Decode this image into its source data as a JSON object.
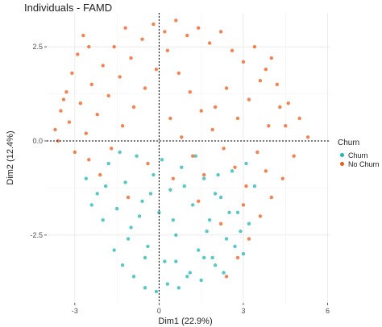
{
  "chart_data": {
    "type": "scatter",
    "title": "Individuals - FAMD",
    "xlabel": "Dim1 (22.9%)",
    "ylabel": "Dim2 (12.4%)",
    "xlim": [
      -4.0,
      6.1
    ],
    "ylim": [
      -4.3,
      3.4
    ],
    "x_ticks": [
      -3,
      0,
      3,
      6
    ],
    "x_tick_labels": [
      "-3",
      "0",
      "3",
      "6"
    ],
    "y_ticks": [
      -2.5,
      0.0,
      2.5
    ],
    "y_tick_labels": [
      "-2.5",
      "0.0",
      "2.5"
    ],
    "grid": true,
    "reference_lines": {
      "x": 0,
      "y": 0
    },
    "legend": {
      "title": "Churn",
      "position": "right",
      "entries": [
        {
          "label": "Churn",
          "color": "#1fb6b3"
        },
        {
          "label": "No Churn",
          "color": "#ef5a1a"
        }
      ]
    },
    "series": [
      {
        "name": "Churn",
        "color": "#1fb6b3",
        "points": [
          [
            -2.6,
            -1.0
          ],
          [
            -2.2,
            -1.4
          ],
          [
            -1.8,
            -0.6
          ],
          [
            -1.5,
            -1.8
          ],
          [
            -1.2,
            -1.1
          ],
          [
            -1.0,
            -2.3
          ],
          [
            -0.8,
            -0.4
          ],
          [
            -0.6,
            -1.6
          ],
          [
            -0.4,
            -2.8
          ],
          [
            -0.2,
            -0.9
          ],
          [
            0.0,
            -1.9
          ],
          [
            0.2,
            -3.2
          ],
          [
            0.4,
            -1.3
          ],
          [
            0.6,
            -2.5
          ],
          [
            0.8,
            -0.7
          ],
          [
            1.0,
            -3.6
          ],
          [
            1.2,
            -1.7
          ],
          [
            1.4,
            -2.9
          ],
          [
            1.6,
            -1.0
          ],
          [
            1.8,
            -2.1
          ],
          [
            2.0,
            -3.3
          ],
          [
            2.2,
            -1.5
          ],
          [
            2.4,
            -2.6
          ],
          [
            2.6,
            -0.8
          ],
          [
            2.8,
            -1.9
          ],
          [
            3.0,
            -3.0
          ],
          [
            3.2,
            -2.2
          ],
          [
            3.4,
            -1.2
          ],
          [
            -1.6,
            -2.9
          ],
          [
            -1.3,
            -3.3
          ],
          [
            -0.9,
            -3.6
          ],
          [
            -0.5,
            -3.9
          ],
          [
            -0.1,
            -4.0
          ],
          [
            0.3,
            -3.8
          ],
          [
            0.7,
            -3.9
          ],
          [
            1.1,
            -3.5
          ],
          [
            1.5,
            -3.7
          ],
          [
            1.9,
            -3.1
          ],
          [
            2.3,
            -3.5
          ],
          [
            2.7,
            -2.8
          ],
          [
            -2.0,
            -2.1
          ],
          [
            -1.9,
            -1.2
          ],
          [
            -1.4,
            -0.3
          ],
          [
            -0.7,
            -2.0
          ],
          [
            -0.3,
            -1.4
          ],
          [
            0.1,
            -0.5
          ],
          [
            0.5,
            -2.1
          ],
          [
            0.9,
            -1.2
          ],
          [
            1.3,
            -0.4
          ],
          [
            1.7,
            -2.4
          ],
          [
            2.1,
            -0.9
          ],
          [
            2.5,
            -1.9
          ],
          [
            2.9,
            -2.4
          ],
          [
            3.1,
            -0.6
          ],
          [
            -2.4,
            -1.7
          ],
          [
            -1.1,
            -2.6
          ],
          [
            -0.5,
            -3.1
          ],
          [
            0.6,
            -3.2
          ],
          [
            1.6,
            -3.1
          ],
          [
            2.0,
            -1.4
          ]
        ]
      },
      {
        "name": "No Churn",
        "color": "#ef5a1a",
        "points": [
          [
            -3.7,
            0.3
          ],
          [
            -3.5,
            0.8
          ],
          [
            -3.3,
            1.3
          ],
          [
            -3.1,
            1.8
          ],
          [
            -2.9,
            2.3
          ],
          [
            -2.7,
            2.8
          ],
          [
            -3.6,
            0.0
          ],
          [
            -3.2,
            0.5
          ],
          [
            -2.8,
            1.0
          ],
          [
            -2.4,
            1.5
          ],
          [
            -2.0,
            2.0
          ],
          [
            -1.6,
            2.5
          ],
          [
            -1.2,
            3.0
          ],
          [
            -3.0,
            -0.3
          ],
          [
            -2.6,
            0.2
          ],
          [
            -2.2,
            0.7
          ],
          [
            -1.8,
            1.2
          ],
          [
            -1.4,
            1.7
          ],
          [
            -1.0,
            2.2
          ],
          [
            -0.6,
            2.7
          ],
          [
            -0.2,
            3.1
          ],
          [
            0.2,
            2.9
          ],
          [
            0.6,
            3.2
          ],
          [
            1.0,
            2.8
          ],
          [
            1.4,
            3.0
          ],
          [
            1.8,
            2.6
          ],
          [
            2.2,
            2.9
          ],
          [
            2.6,
            2.4
          ],
          [
            3.0,
            2.1
          ],
          [
            3.4,
            2.5
          ],
          [
            3.8,
            1.9
          ],
          [
            4.2,
            1.5
          ],
          [
            4.6,
            1.0
          ],
          [
            5.0,
            0.6
          ],
          [
            5.3,
            0.1
          ],
          [
            4.8,
            -0.4
          ],
          [
            4.4,
            -1.0
          ],
          [
            4.0,
            -1.5
          ],
          [
            3.6,
            -2.0
          ],
          [
            3.2,
            -2.6
          ],
          [
            2.8,
            -3.1
          ],
          [
            2.4,
            -3.6
          ],
          [
            -2.5,
            -0.5
          ],
          [
            -2.1,
            -0.9
          ],
          [
            -1.7,
            -0.2
          ],
          [
            -1.3,
            0.4
          ],
          [
            -0.9,
            0.9
          ],
          [
            -0.5,
            1.4
          ],
          [
            -0.1,
            1.9
          ],
          [
            0.3,
            2.4
          ],
          [
            0.7,
            1.8
          ],
          [
            1.1,
            1.3
          ],
          [
            1.5,
            0.8
          ],
          [
            1.9,
            0.3
          ],
          [
            2.3,
            -0.2
          ],
          [
            2.7,
            -0.7
          ],
          [
            3.1,
            -1.2
          ],
          [
            3.5,
            -0.3
          ],
          [
            3.9,
            0.4
          ],
          [
            4.3,
            0.9
          ],
          [
            0.4,
            0.6
          ],
          [
            0.8,
            0.1
          ],
          [
            1.2,
            -0.4
          ],
          [
            1.6,
            -0.9
          ],
          [
            2.0,
            0.9
          ],
          [
            2.4,
            1.4
          ],
          [
            2.8,
            0.6
          ],
          [
            3.2,
            1.1
          ],
          [
            3.6,
            1.6
          ],
          [
            4.0,
            2.2
          ],
          [
            -1.1,
            -1.5
          ],
          [
            -0.4,
            -0.6
          ],
          [
            0.5,
            -1.0
          ],
          [
            1.4,
            -1.6
          ],
          [
            2.2,
            -2.2
          ],
          [
            3.0,
            -1.7
          ],
          [
            3.8,
            -0.8
          ],
          [
            4.5,
            0.4
          ],
          [
            -3.4,
            1.1
          ],
          [
            -2.5,
            2.5
          ]
        ]
      }
    ]
  }
}
